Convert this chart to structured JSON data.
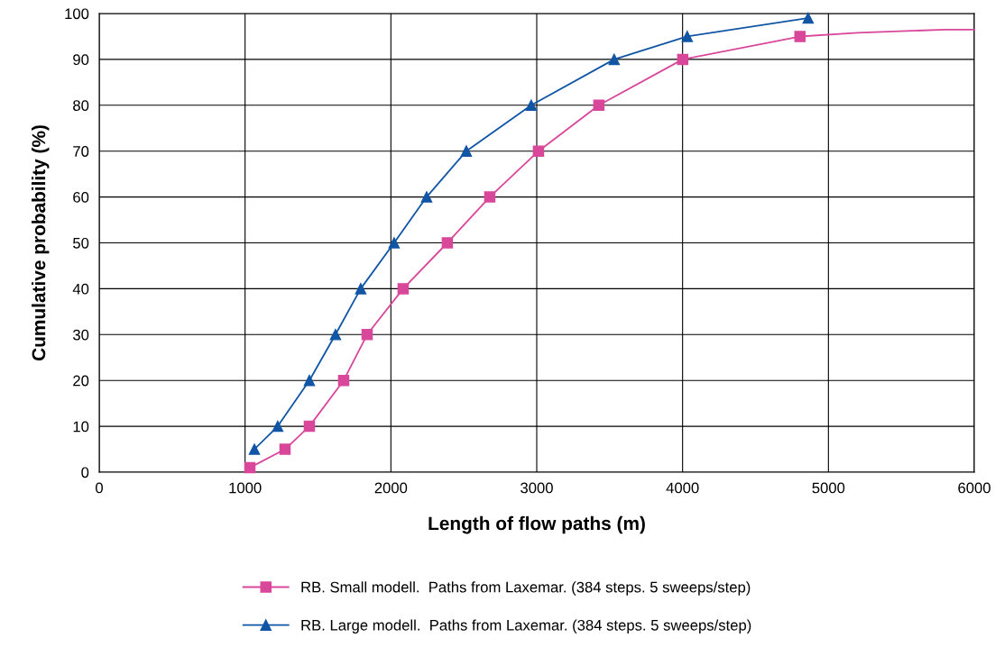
{
  "chart_data": {
    "type": "line",
    "xlabel": "Length of flow paths (m)",
    "ylabel": "Cumulative probability (%)",
    "xlim": [
      0,
      6000
    ],
    "xticks": [
      0,
      1000,
      2000,
      3000,
      4000,
      5000,
      6000
    ],
    "ylim": [
      0,
      100
    ],
    "yticks": [
      0,
      10,
      20,
      30,
      40,
      50,
      60,
      70,
      80,
      90,
      100
    ],
    "grid": true,
    "legend": "bottom",
    "line_style": "solid",
    "series": [
      {
        "name": "RB. Small modell.  Paths from Laxemar. (384 steps. 5 sweeps/step)",
        "color": "#d9479a",
        "marker": "square",
        "x": [
          1033,
          1274,
          1441,
          1676,
          1837,
          2084,
          2387,
          2678,
          3012,
          3426,
          4001,
          4805
        ],
        "values": [
          1,
          5,
          10,
          20,
          30,
          40,
          50,
          60,
          70,
          80,
          90,
          95
        ]
      },
      {
        "name": "RB. Large modell.  Paths from Laxemar. (384 steps. 5 sweeps/step)",
        "color": "#1155a5",
        "marker": "triangle",
        "x": [
          1064,
          1224,
          1441,
          1620,
          1793,
          2022,
          2245,
          2517,
          2962,
          3531,
          4032,
          4861
        ],
        "values": [
          5,
          10,
          20,
          30,
          40,
          50,
          60,
          70,
          80,
          90,
          95,
          99
        ]
      },
      {
        "color": "#d9479a",
        "marker": "none",
        "x": [
          4805,
          5200,
          5800,
          6000
        ],
        "values": [
          95,
          95.8,
          96.5,
          96.5
        ]
      }
    ]
  }
}
